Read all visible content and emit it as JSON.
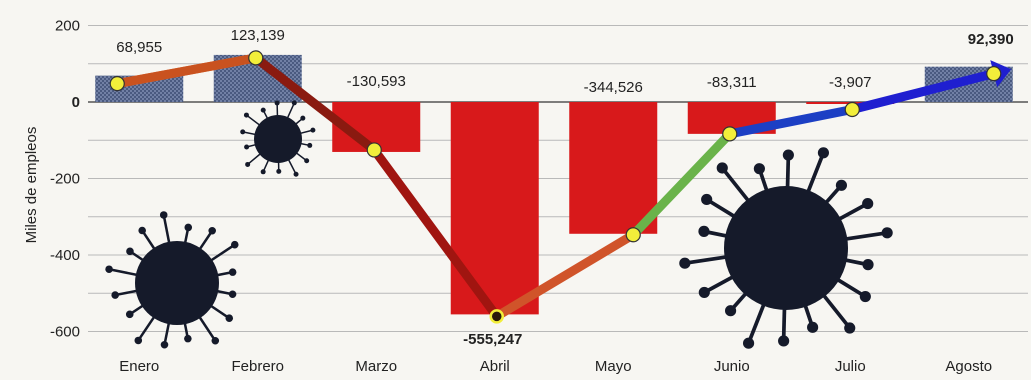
{
  "chart_data": {
    "type": "bar",
    "ylabel": "Miles de empleos",
    "categories": [
      "Enero",
      "Febrero",
      "Marzo",
      "Abril",
      "Mayo",
      "Junio",
      "Julio",
      "Agosto"
    ],
    "values": [
      68955,
      123139,
      -130593,
      -555247,
      -344526,
      -83311,
      -3907,
      92390
    ],
    "value_labels": [
      "68,955",
      "123,139",
      "-130,593",
      "-555,247",
      "-344,526",
      "-83,311",
      "-3,907",
      "92,390"
    ],
    "y_ticks": [
      {
        "value": 200,
        "label": "200"
      },
      {
        "value": 0,
        "label": "0"
      },
      {
        "value": -200,
        "label": "-200"
      },
      {
        "value": -400,
        "label": "-400"
      },
      {
        "value": -600,
        "label": "-600"
      }
    ],
    "ylim": [
      -630,
      220
    ],
    "grid": true,
    "colors": {
      "positive_bar": "#4a5a80",
      "negative_bar": "#d8191b",
      "highlight_negative_label": "#d8191b",
      "highlight_positive_label": "#1f3fbf",
      "marker_fill": "#f2ee3a",
      "virus": "#151a2a"
    }
  }
}
